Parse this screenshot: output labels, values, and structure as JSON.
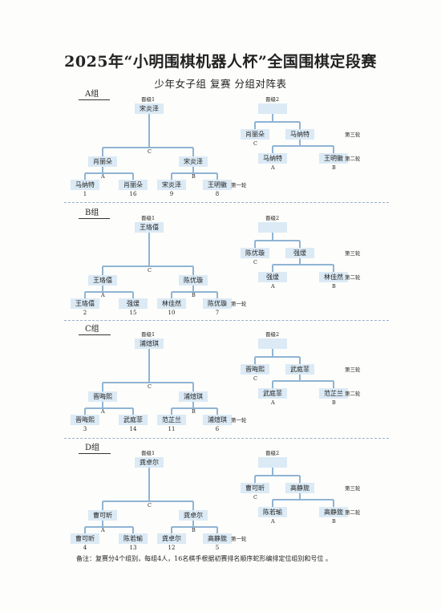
{
  "title": "2025年“小明围棋机器人杯”全国围棋定段赛",
  "subtitle": "少年女子组  复赛  分组对阵表",
  "labels": {
    "advance1": "晋级1",
    "advance2": "晋级2",
    "round1": "第一轮",
    "round2": "第二轮",
    "round3": "第三轮"
  },
  "groups": [
    {
      "name": "A组",
      "winner1": "宋炎泽",
      "final_left": "肖丽朵",
      "final_right": "宋炎泽",
      "r1": [
        {
          "name": "马纳特",
          "seed": "1"
        },
        {
          "name": "肖丽朵",
          "seed": "16"
        },
        {
          "name": "宋炎泽",
          "seed": "9"
        },
        {
          "name": "王明徽",
          "seed": "8"
        }
      ],
      "sub_r3": [
        "肖丽朵",
        "马纳特"
      ],
      "sub_r2": [
        "马纳特",
        "王明徽"
      ]
    },
    {
      "name": "B组",
      "winner1": "王珞僖",
      "final_left": "王珞僖",
      "final_right": "陈优璇",
      "r1": [
        {
          "name": "王珞僖",
          "seed": "2"
        },
        {
          "name": "强煖",
          "seed": "15"
        },
        {
          "name": "林佳然",
          "seed": "10"
        },
        {
          "name": "陈优璇",
          "seed": "7"
        }
      ],
      "sub_r3": [
        "陈优璇",
        "强煖"
      ],
      "sub_r2": [
        "强煖",
        "林佳然"
      ]
    },
    {
      "name": "C组",
      "winner1": "浦煊琪",
      "final_left": "晋晦熙",
      "final_right": "浦煊琪",
      "r1": [
        {
          "name": "晋晦熙",
          "seed": "3"
        },
        {
          "name": "武庭菲",
          "seed": "14"
        },
        {
          "name": "范芷兰",
          "seed": "11"
        },
        {
          "name": "浦煊琪",
          "seed": "6"
        }
      ],
      "sub_r3": [
        "晋晦熙",
        "武庭菲"
      ],
      "sub_r2": [
        "武庭菲",
        "范芷兰"
      ]
    },
    {
      "name": "D组",
      "winner1": "龚卓尔",
      "final_left": "曹可昕",
      "final_right": "龚卓尔",
      "r1": [
        {
          "name": "曹可昕",
          "seed": "4"
        },
        {
          "name": "陈若瑜",
          "seed": "13"
        },
        {
          "name": "龚卓尔",
          "seed": "12"
        },
        {
          "name": "高静旎",
          "seed": "5"
        }
      ],
      "sub_r3": [
        "曹可昕",
        "高静旎"
      ],
      "sub_r2": [
        "陈若瑜",
        "高静旎"
      ]
    }
  ],
  "match_letters": {
    "a": "A",
    "b": "B",
    "c": "C"
  },
  "note": "备注：复赛分4个组别，每组4人，16名棋手根据初赛排名顺序蛇形编排定位组别和号位  。"
}
